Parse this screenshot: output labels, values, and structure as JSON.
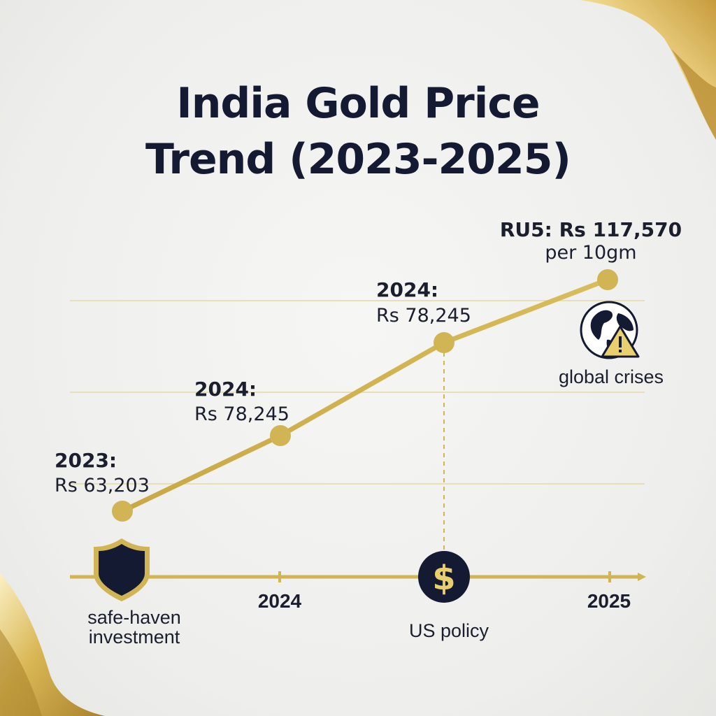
{
  "title_line1": "India Gold Price",
  "title_line2": "Trend (2023-2025)",
  "colors": {
    "gold": "#d1b453",
    "gold_dark": "#b89a3a",
    "navy": "#151a33",
    "text": "#1b1e2c",
    "grid": "#e4dab0"
  },
  "chart_data": {
    "type": "line",
    "title": "India Gold Price Trend (2023-2025)",
    "x_tick_labels": [
      "2024",
      "2025"
    ],
    "points": [
      {
        "x": 2023.0,
        "y": 63203,
        "label_line1": "2023:",
        "label_line2": "Rs 63,203"
      },
      {
        "x": 2023.5,
        "y": 78245,
        "label_line1": "2024:",
        "label_line2": "Rs 78,245"
      },
      {
        "x": 2024.5,
        "y": 78245,
        "label_line1": "2024:",
        "label_line2": "Rs 78,245"
      },
      {
        "x": 2025.0,
        "y": 117570,
        "label_line1": "RU5: Rs 117,570",
        "label_line2": "per 10gm"
      }
    ],
    "grid": true,
    "legend": "none"
  },
  "annotations": [
    {
      "icon": "shield-icon",
      "line1": "safe-haven",
      "line2": "investment"
    },
    {
      "icon": "dollar-icon",
      "line1": "US policy",
      "line2": ""
    },
    {
      "icon": "globe-warning-icon",
      "line1": "global crises",
      "line2": ""
    }
  ]
}
